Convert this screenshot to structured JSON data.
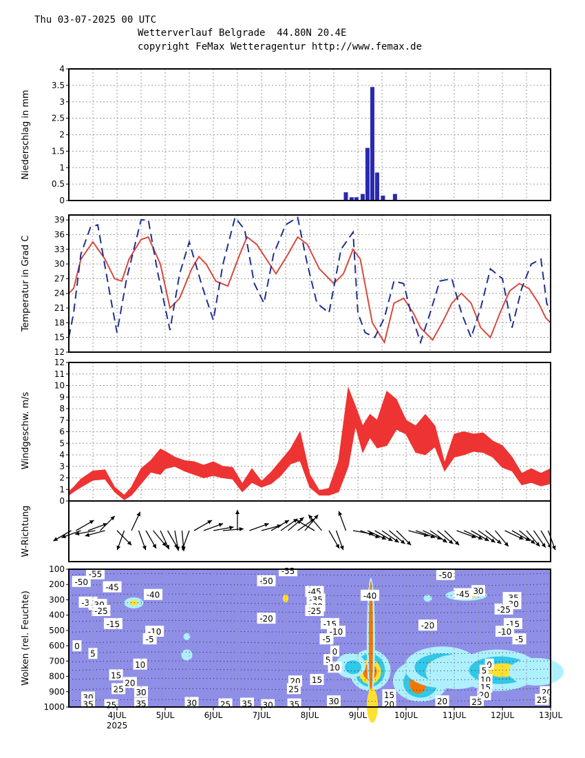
{
  "header": {
    "date": "Thu 03-07-2025 00 UTC",
    "title": "Wetterverlauf Belgrade  44.80N 20.4E",
    "copyright": "copyright FeMax Wetteragentur http://www.femax.de"
  },
  "colors": {
    "precip_bar": "#2a2ab0",
    "temp_red": "#d8483c",
    "temp_blue": "#1f2f8f",
    "wind_band": "#ee3333",
    "cloud_bg": "#8f8fe8",
    "cloud_light": "#aef0ff",
    "cloud_mid": "#30c8e8",
    "cloud_yellow": "#ffe030",
    "cloud_orange": "#f07800"
  },
  "chart_data": [
    {
      "type": "bar",
      "name": "precipitation",
      "ylabel": "Niederschlag  in  mm",
      "ylim": [
        0,
        4
      ],
      "yticks": [
        "0",
        "0.5",
        "1",
        "1.5",
        "2",
        "2.5",
        "3",
        "3.5",
        "4"
      ],
      "x": [
        8.75,
        8.87,
        8.97,
        9.1,
        9.2,
        9.3,
        9.4,
        9.52,
        9.77
      ],
      "values": [
        0.25,
        0.1,
        0.1,
        0.2,
        1.6,
        3.45,
        0.85,
        0.15,
        0.2
      ]
    },
    {
      "type": "line",
      "name": "temperature",
      "ylabel": "Temperatur  in  Grad  C",
      "ylim": [
        12,
        40
      ],
      "yticks": [
        "12",
        "15",
        "18",
        "21",
        "24",
        "27",
        "30",
        "33",
        "36",
        "39"
      ],
      "series": [
        {
          "name": "solid",
          "style": "solid",
          "x": [
            3.0,
            3.1,
            3.25,
            3.5,
            3.75,
            3.95,
            4.1,
            4.25,
            4.5,
            4.65,
            4.9,
            5.1,
            5.3,
            5.55,
            5.7,
            5.85,
            6.05,
            6.3,
            6.55,
            6.7,
            6.9,
            7.1,
            7.3,
            7.55,
            7.75,
            7.95,
            8.2,
            8.5,
            8.7,
            8.9,
            9.05,
            9.3,
            9.55,
            9.75,
            9.95,
            10.15,
            10.3,
            10.55,
            10.75,
            10.95,
            11.15,
            11.35,
            11.55,
            11.75,
            11.95,
            12.15,
            12.35,
            12.55,
            12.75,
            12.9,
            13.0
          ],
          "values": [
            24,
            25,
            31,
            34.5,
            31,
            27,
            26.5,
            31,
            35,
            35.5,
            30,
            21,
            23,
            29,
            31.5,
            30,
            26.5,
            25.5,
            32,
            35.5,
            34,
            31,
            28,
            32,
            35.5,
            34,
            29,
            26,
            28,
            33,
            31,
            18,
            14,
            22,
            23,
            20,
            17,
            14.5,
            18,
            22,
            24,
            22,
            17,
            15,
            20,
            24.5,
            26,
            25,
            22,
            19,
            18
          ]
        },
        {
          "name": "dashed",
          "style": "dashed",
          "x": [
            3.0,
            3.1,
            3.25,
            3.45,
            3.6,
            3.85,
            4.0,
            4.2,
            4.5,
            4.65,
            4.85,
            5.1,
            5.3,
            5.5,
            5.75,
            6.0,
            6.2,
            6.45,
            6.65,
            6.85,
            7.05,
            7.25,
            7.5,
            7.75,
            7.95,
            8.15,
            8.4,
            8.65,
            8.9,
            9.0,
            9.15,
            9.35,
            9.55,
            9.75,
            9.95,
            10.1,
            10.3,
            10.5,
            10.7,
            10.95,
            11.15,
            11.35,
            11.55,
            11.75,
            12.0,
            12.2,
            12.4,
            12.6,
            12.8,
            12.92,
            13.0
          ],
          "values": [
            15,
            20,
            32,
            37.5,
            38,
            24,
            16,
            27,
            39,
            39,
            28,
            16.5,
            28,
            34.5,
            26,
            18.5,
            30,
            39.5,
            37,
            26,
            22,
            32,
            38,
            39.5,
            30,
            22,
            20,
            33,
            36.5,
            20,
            16,
            15,
            19,
            26.5,
            26,
            20,
            14,
            20,
            26.5,
            27,
            20,
            15,
            21,
            29,
            27,
            17,
            25,
            30,
            31,
            22,
            20
          ]
        }
      ]
    },
    {
      "type": "area",
      "name": "wind_speed",
      "ylabel": "Windgeschw.  m/s",
      "ylim": [
        0,
        12
      ],
      "yticks": [
        "0",
        "1",
        "2",
        "3",
        "4",
        "5",
        "6",
        "7",
        "8",
        "9",
        "10",
        "11",
        "12"
      ],
      "x": [
        3.0,
        3.1,
        3.25,
        3.5,
        3.75,
        3.95,
        4.15,
        4.3,
        4.5,
        4.7,
        4.9,
        5.0,
        5.2,
        5.4,
        5.6,
        5.8,
        6.0,
        6.2,
        6.4,
        6.6,
        6.8,
        7.0,
        7.2,
        7.4,
        7.6,
        7.8,
        8.0,
        8.2,
        8.4,
        8.6,
        8.8,
        8.95,
        9.1,
        9.25,
        9.4,
        9.6,
        9.8,
        10.0,
        10.2,
        10.4,
        10.6,
        10.8,
        11.0,
        11.2,
        11.4,
        11.6,
        11.8,
        12.0,
        12.2,
        12.4,
        12.6,
        12.8,
        13.0
      ],
      "low": [
        0.5,
        0.8,
        1.2,
        1.8,
        1.9,
        0.8,
        0.1,
        0.5,
        1.5,
        2.5,
        2.3,
        2.8,
        3.0,
        2.6,
        2.3,
        2.0,
        2.2,
        2.0,
        1.9,
        0.8,
        1.6,
        1.2,
        1.5,
        2.2,
        3.2,
        3.5,
        1.2,
        0.5,
        0.5,
        0.8,
        3.0,
        6.5,
        4.2,
        5.5,
        4.6,
        4.8,
        6.2,
        5.8,
        4.2,
        4.0,
        4.7,
        2.6,
        3.8,
        4.0,
        4.3,
        4.2,
        3.8,
        2.9,
        2.6,
        1.4,
        1.6,
        1.3,
        1.5
      ],
      "high": [
        0.8,
        1.2,
        1.9,
        2.6,
        2.7,
        1.2,
        0.5,
        1.2,
        2.8,
        3.5,
        4.5,
        4.3,
        3.8,
        3.5,
        3.4,
        3.1,
        3.4,
        3.0,
        2.9,
        1.5,
        2.8,
        1.7,
        2.5,
        3.5,
        4.5,
        6.0,
        2.3,
        0.9,
        1.1,
        3.5,
        9.8,
        8.2,
        6.5,
        7.5,
        7.0,
        9.5,
        8.8,
        7.0,
        6.5,
        7.5,
        6.5,
        3.3,
        5.8,
        6.0,
        5.8,
        5.9,
        5.2,
        4.8,
        3.8,
        2.4,
        2.8,
        2.4,
        2.8
      ]
    },
    {
      "type": "scatter",
      "name": "wind_direction",
      "ylabel": "W-Richtung",
      "x": [
        3.05,
        3.15,
        3.25,
        3.4,
        3.55,
        3.65,
        3.75,
        4.0,
        4.15,
        4.3,
        4.45,
        4.6,
        4.75,
        4.9,
        5.05,
        5.2,
        5.35,
        5.5,
        5.6,
        5.8,
        6.0,
        6.2,
        6.5,
        6.75,
        7.0,
        7.2,
        7.4,
        7.55,
        7.75,
        7.9,
        8.1,
        8.25,
        8.4,
        8.55,
        8.75,
        8.9,
        9.05,
        9.2,
        9.35,
        9.5,
        9.65,
        9.8,
        10.05,
        10.2,
        10.35,
        10.5,
        10.65,
        10.8,
        11.05,
        11.2,
        11.35,
        11.5,
        11.65,
        11.85,
        12.05,
        12.2,
        12.35,
        12.5,
        12.65,
        12.8,
        12.95
      ],
      "direction_deg": [
        240,
        60,
        250,
        70,
        260,
        45,
        255,
        135,
        200,
        25,
        160,
        150,
        140,
        155,
        150,
        170,
        175,
        200,
        60,
        70,
        80,
        85,
        0,
        70,
        75,
        60,
        55,
        50,
        55,
        40,
        300,
        320,
        150,
        160,
        340,
        100,
        110,
        115,
        120,
        125,
        130,
        135,
        105,
        110,
        115,
        125,
        130,
        135,
        110,
        115,
        120,
        125,
        130,
        140,
        115,
        120,
        130,
        140,
        145,
        150,
        160
      ]
    },
    {
      "type": "heatmap",
      "name": "clouds",
      "ylabel": "Wolken  (rel.  Feuchte)",
      "ylim": [
        1000,
        100
      ],
      "yticks": [
        "100",
        "200",
        "300",
        "400",
        "500",
        "600",
        "700",
        "800",
        "900",
        "1000"
      ],
      "x_categories": [
        "4JUL",
        "5JUL",
        "6JUL",
        "7JUL",
        "8JUL",
        "9JUL",
        "10JUL",
        "11JUL",
        "12JUL",
        "13JUL"
      ],
      "x_year_label": "2025",
      "contour_labels": [
        {
          "text": "-50",
          "x": 3.26,
          "p": 180
        },
        {
          "text": "-55",
          "x": 3.55,
          "p": 130
        },
        {
          "text": "-45",
          "x": 3.9,
          "p": 215
        },
        {
          "text": "-40",
          "x": 4.75,
          "p": 265
        },
        {
          "text": "-35",
          "x": 3.4,
          "p": 315
        },
        {
          "text": "-30",
          "x": 3.6,
          "p": 330
        },
        {
          "text": "-25",
          "x": 3.67,
          "p": 370
        },
        {
          "text": "-15",
          "x": 3.92,
          "p": 455
        },
        {
          "text": "-10",
          "x": 4.78,
          "p": 505
        },
        {
          "text": "-5",
          "x": 4.68,
          "p": 555
        },
        {
          "text": "0",
          "x": 3.17,
          "p": 600
        },
        {
          "text": "5",
          "x": 3.5,
          "p": 650
        },
        {
          "text": "10",
          "x": 4.48,
          "p": 720
        },
        {
          "text": "15",
          "x": 3.98,
          "p": 790
        },
        {
          "text": "20",
          "x": 4.27,
          "p": 840
        },
        {
          "text": "25",
          "x": 4.03,
          "p": 880
        },
        {
          "text": "30",
          "x": 3.4,
          "p": 935
        },
        {
          "text": "30",
          "x": 4.5,
          "p": 900
        },
        {
          "text": "35",
          "x": 3.4,
          "p": 980
        },
        {
          "text": "25",
          "x": 3.88,
          "p": 985
        },
        {
          "text": "35",
          "x": 4.5,
          "p": 975
        },
        {
          "text": "30",
          "x": 5.55,
          "p": 970
        },
        {
          "text": "25",
          "x": 6.25,
          "p": 980
        },
        {
          "text": "35",
          "x": 6.7,
          "p": 975
        },
        {
          "text": "30",
          "x": 7.13,
          "p": 985
        },
        {
          "text": "35",
          "x": 7.68,
          "p": 980
        },
        {
          "text": "-55",
          "x": 7.55,
          "p": 110
        },
        {
          "text": "-50",
          "x": 7.1,
          "p": 175
        },
        {
          "text": "-20",
          "x": 7.1,
          "p": 420
        },
        {
          "text": "-45",
          "x": 8.1,
          "p": 245
        },
        {
          "text": "-35",
          "x": 8.13,
          "p": 295
        },
        {
          "text": "-30",
          "x": 8.13,
          "p": 340
        },
        {
          "text": "-25",
          "x": 8.1,
          "p": 370
        },
        {
          "text": "-15",
          "x": 8.42,
          "p": 455
        },
        {
          "text": "-10",
          "x": 8.55,
          "p": 505
        },
        {
          "text": "-5",
          "x": 8.35,
          "p": 555
        },
        {
          "text": "0",
          "x": 8.52,
          "p": 635
        },
        {
          "text": "5",
          "x": 8.38,
          "p": 690
        },
        {
          "text": "10",
          "x": 8.52,
          "p": 740
        },
        {
          "text": "15",
          "x": 8.15,
          "p": 820
        },
        {
          "text": "20",
          "x": 7.7,
          "p": 830
        },
        {
          "text": "25",
          "x": 7.67,
          "p": 880
        },
        {
          "text": "30",
          "x": 8.5,
          "p": 960
        },
        {
          "text": "-40",
          "x": 9.25,
          "p": 270
        },
        {
          "text": "15",
          "x": 9.65,
          "p": 920
        },
        {
          "text": "20",
          "x": 9.65,
          "p": 980
        },
        {
          "text": "-20",
          "x": 10.45,
          "p": 465
        },
        {
          "text": "20",
          "x": 10.75,
          "p": 960
        },
        {
          "text": "-50",
          "x": 10.82,
          "p": 135
        },
        {
          "text": "-45",
          "x": 11.18,
          "p": 260
        },
        {
          "text": "30",
          "x": 11.5,
          "p": 240
        },
        {
          "text": "-35",
          "x": 12.2,
          "p": 285
        },
        {
          "text": "-30",
          "x": 12.2,
          "p": 325
        },
        {
          "text": "-25",
          "x": 12.03,
          "p": 360
        },
        {
          "text": "-15",
          "x": 12.22,
          "p": 455
        },
        {
          "text": "-10",
          "x": 12.05,
          "p": 505
        },
        {
          "text": "-5",
          "x": 12.35,
          "p": 555
        },
        {
          "text": "0",
          "x": 11.73,
          "p": 720
        },
        {
          "text": "5",
          "x": 11.62,
          "p": 760
        },
        {
          "text": "10",
          "x": 11.65,
          "p": 820
        },
        {
          "text": "15",
          "x": 11.65,
          "p": 870
        },
        {
          "text": "20",
          "x": 11.62,
          "p": 920
        },
        {
          "text": "25",
          "x": 11.47,
          "p": 965
        },
        {
          "text": "20",
          "x": 12.92,
          "p": 900
        },
        {
          "text": "25",
          "x": 12.82,
          "p": 950
        }
      ]
    }
  ]
}
